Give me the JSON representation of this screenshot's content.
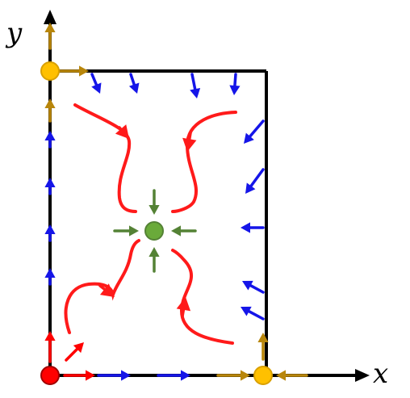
{
  "diagram": {
    "axes": {
      "x_label": "x",
      "y_label": "y"
    },
    "colors": {
      "axis": "#000000",
      "boundary": "#000000",
      "inflow_arrows": "#1515e8",
      "axis_flow_arrows": "#b8860b",
      "trajectories": "#ff1a1a",
      "stable_point": "#6aaa3a",
      "stable_point_arrows": "#548235",
      "saddle_points": "#ffc000",
      "unstable_point": "#ff0000"
    },
    "points": [
      {
        "name": "origin",
        "type": "unstable",
        "color_key": "unstable_point"
      },
      {
        "name": "x-intercept",
        "type": "saddle",
        "color_key": "saddle_points"
      },
      {
        "name": "y-intercept",
        "type": "saddle",
        "color_key": "saddle_points"
      },
      {
        "name": "interior-equilibrium",
        "type": "stable",
        "color_key": "stable_point"
      }
    ]
  }
}
